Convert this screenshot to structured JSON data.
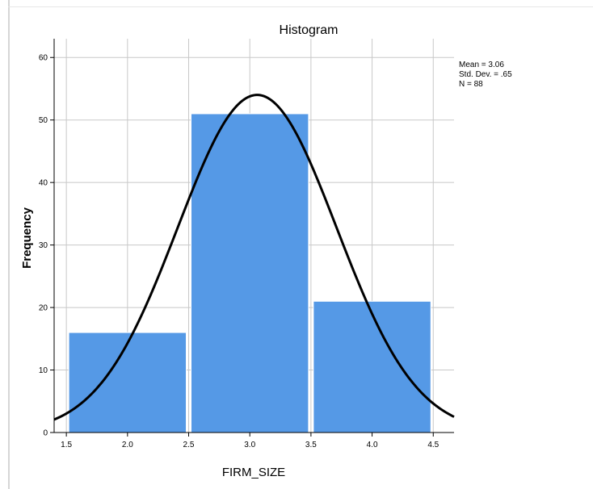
{
  "chart_data": {
    "type": "bar",
    "title": "Histogram",
    "xlabel": "FIRM_SIZE",
    "ylabel": "Frequency",
    "bins": [
      {
        "start": 1.5,
        "end": 2.5,
        "count": 16
      },
      {
        "start": 2.5,
        "end": 3.5,
        "count": 51
      },
      {
        "start": 3.5,
        "end": 4.5,
        "count": 21
      }
    ],
    "xlim": [
      1.4,
      4.67
    ],
    "ylim": [
      0,
      63
    ],
    "x_ticks": [
      "1.5",
      "2.0",
      "2.5",
      "3.0",
      "3.5",
      "4.0",
      "4.5"
    ],
    "y_ticks": [
      "0",
      "10",
      "20",
      "30",
      "40",
      "50",
      "60"
    ],
    "grid": true,
    "normal_curve": {
      "mean": 3.06,
      "std_dev": 0.65,
      "n": 88,
      "bin_width": 1.0
    },
    "stats": {
      "mean": "Mean = 3.06",
      "std_dev": "Std. Dev. = .65",
      "n": "N = 88"
    },
    "colors": {
      "bar": "#5599e6",
      "bar_edge": "#ffffff",
      "curve": "#000000",
      "grid": "#c8c8c8"
    }
  }
}
